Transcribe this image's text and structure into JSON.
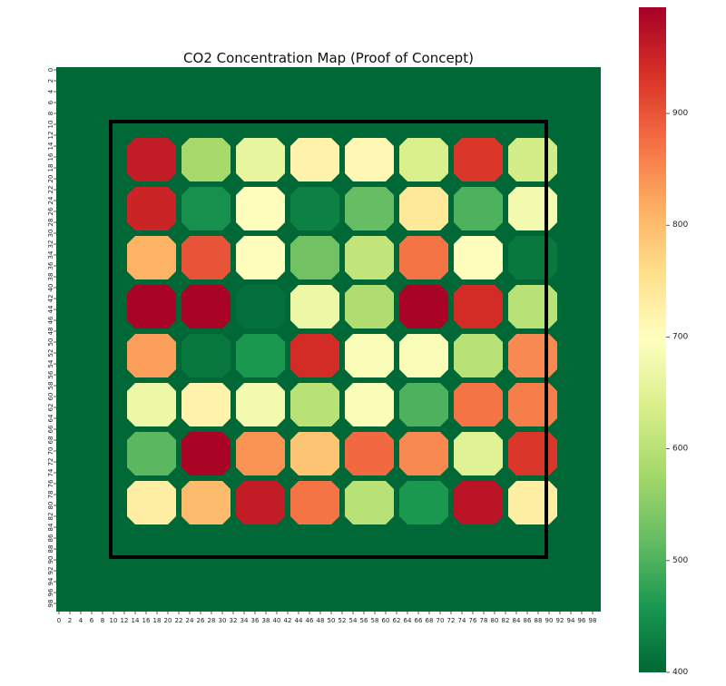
{
  "chart_data": {
    "type": "heatmap",
    "title": "CO2 Concentration Map (Proof of Concept)",
    "grid_size": 100,
    "x_ticks": [
      0,
      2,
      4,
      6,
      8,
      10,
      12,
      14,
      16,
      18,
      20,
      22,
      24,
      26,
      28,
      30,
      32,
      34,
      36,
      38,
      40,
      42,
      44,
      46,
      48,
      50,
      52,
      54,
      56,
      58,
      60,
      62,
      64,
      66,
      68,
      70,
      72,
      74,
      76,
      78,
      80,
      82,
      84,
      86,
      88,
      90,
      92,
      94,
      96,
      98
    ],
    "y_ticks": [
      0,
      2,
      4,
      6,
      8,
      10,
      12,
      14,
      16,
      18,
      20,
      22,
      24,
      26,
      28,
      30,
      32,
      34,
      36,
      38,
      40,
      42,
      44,
      46,
      48,
      50,
      52,
      54,
      56,
      58,
      60,
      62,
      64,
      66,
      68,
      70,
      72,
      74,
      76,
      78,
      80,
      82,
      84,
      86,
      88,
      90,
      92,
      94,
      96,
      98
    ],
    "background_value": 400,
    "room_outline": {
      "x0": 10,
      "y0": 10,
      "x1": 90,
      "y1": 90
    },
    "sensor_grid": {
      "columns": [
        [
          13,
          22
        ],
        [
          23,
          32
        ],
        [
          33,
          42
        ],
        [
          43,
          52
        ],
        [
          53,
          62
        ],
        [
          63,
          72
        ],
        [
          73,
          82
        ],
        [
          83,
          92
        ]
      ],
      "rows": [
        [
          13,
          21
        ],
        [
          22,
          30
        ],
        [
          31,
          39
        ],
        [
          40,
          48
        ],
        [
          49,
          57
        ],
        [
          58,
          66
        ],
        [
          67,
          75
        ],
        [
          76,
          84
        ]
      ]
    },
    "values": [
      [
        960,
        580,
        660,
        720,
        710,
        640,
        930,
        630
      ],
      [
        950,
        450,
        700,
        430,
        520,
        740,
        500,
        680
      ],
      [
        810,
        900,
        700,
        530,
        610,
        870,
        700,
        420
      ],
      [
        990,
        990,
        410,
        670,
        590,
        990,
        940,
        600
      ],
      [
        830,
        420,
        460,
        940,
        690,
        690,
        600,
        850
      ],
      [
        670,
        720,
        680,
        600,
        690,
        500,
        870,
        860
      ],
      [
        510,
        990,
        840,
        790,
        880,
        850,
        650,
        930
      ],
      [
        730,
        800,
        960,
        870,
        600,
        460,
        970,
        730
      ]
    ],
    "colorbar": {
      "min": 400,
      "max": 995,
      "ticks": [
        400,
        500,
        600,
        700,
        800,
        900
      ],
      "colormap": "RdYlGn_r"
    },
    "colors": {
      "outline": "#000000"
    }
  }
}
